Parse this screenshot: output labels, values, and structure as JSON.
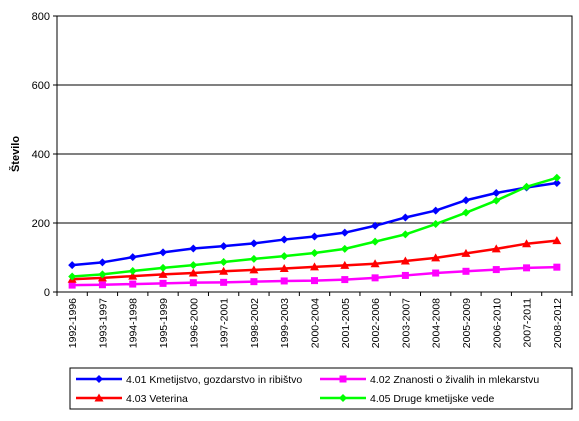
{
  "chart_data": {
    "type": "line",
    "title": "",
    "xlabel": "",
    "ylabel": "Število",
    "ylim": [
      0,
      800
    ],
    "yticks": [
      0,
      200,
      400,
      600,
      800
    ],
    "grid": "horizontal",
    "legend_position": "bottom",
    "categories": [
      "1992-1996",
      "1993-1997",
      "1994-1998",
      "1995-1999",
      "1996-2000",
      "1997-2001",
      "1998-2002",
      "1999-2003",
      "2000-2004",
      "2001-2005",
      "2002-2006",
      "2003-2007",
      "2004-2008",
      "2005-2009",
      "2006-2010",
      "2007-2011",
      "2008-2012"
    ],
    "series": [
      {
        "name": "4.01 Kmetijstvo, gozdarstvo in ribištvo",
        "color": "#0000ff",
        "marker": "diamond",
        "values": [
          78,
          86,
          101,
          115,
          126,
          133,
          141,
          152,
          161,
          172,
          192,
          216,
          236,
          266,
          287,
          303,
          316
        ]
      },
      {
        "name": "4.02 Znanosti o živalih in mlekarstvu",
        "color": "#ff00ff",
        "marker": "square",
        "values": [
          20,
          21,
          23,
          25,
          27,
          28,
          30,
          32,
          33,
          36,
          41,
          48,
          55,
          60,
          65,
          70,
          72
        ]
      },
      {
        "name": "4.03 Veterina",
        "color": "#ff0000",
        "marker": "triangle",
        "values": [
          37,
          41,
          46,
          51,
          55,
          60,
          64,
          68,
          73,
          77,
          82,
          90,
          99,
          112,
          125,
          140,
          149
        ]
      },
      {
        "name": "4.05 Druge kmetijske vede",
        "color": "#00ff00",
        "marker": "diamond",
        "values": [
          45,
          51,
          61,
          70,
          78,
          87,
          96,
          104,
          113,
          125,
          146,
          167,
          197,
          230,
          265,
          305,
          331
        ]
      }
    ]
  }
}
